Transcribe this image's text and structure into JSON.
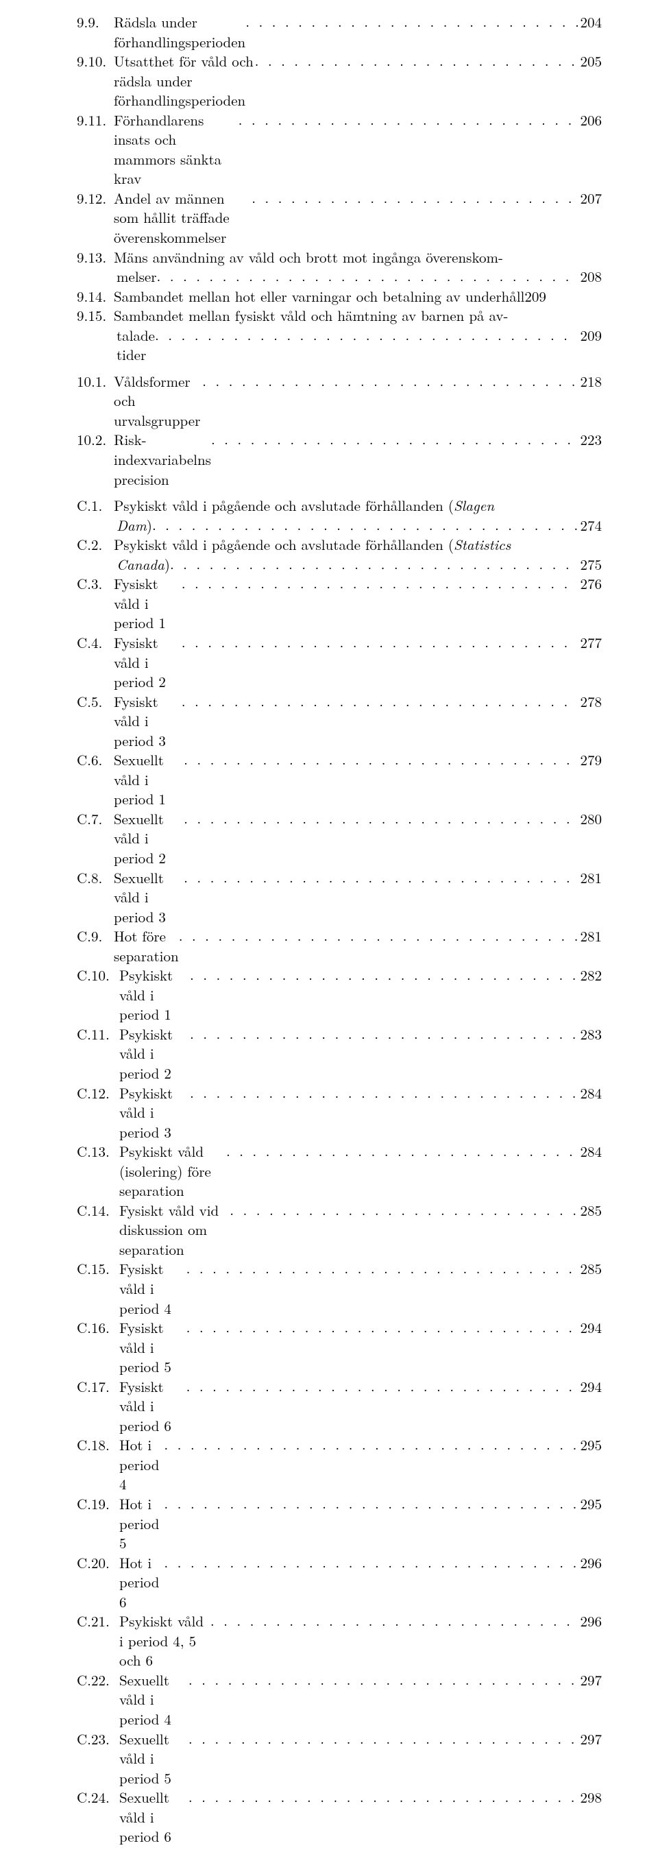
{
  "block9": [
    {
      "num": "9.9.",
      "title": "Rädsla under förhandlingsperioden",
      "pg": "204"
    },
    {
      "num": "9.10.",
      "title": "Utsatthet för våld och rädsla under förhandlingsperioden",
      "pg": "205"
    },
    {
      "num": "9.11.",
      "title": "Förhandlarens insats och mammors sänkta krav",
      "pg": "206"
    },
    {
      "num": "9.12.",
      "title": "Andel av männen som hållit träffade överenskommelser",
      "pg": "207"
    },
    {
      "num": "9.13.",
      "title_l1": "Mäns användning av våld och brott mot ingånga överenskom-",
      "title_l2": "melser",
      "pg": "208"
    },
    {
      "num": "9.14.",
      "title": "Sambandet mellan hot eller varningar och betalning av underhåll",
      "pg": "209",
      "noleader": true
    },
    {
      "num": "9.15.",
      "title_l1": "Sambandet mellan fysiskt våld och hämtning av barnen på av-",
      "title_l2": "talade tider",
      "pg": "209"
    }
  ],
  "block10": [
    {
      "num": "10.1.",
      "title": "Våldsformer och urvalsgrupper",
      "pg": "218"
    },
    {
      "num": "10.2.",
      "title": "Risk-indexvariabelns precision",
      "pg": "223"
    }
  ],
  "blockC": [
    {
      "num": "C.1.",
      "title_l1_pre": "Psykiskt våld i pågående och avslutade förhållanden (",
      "title_l1_it": "Slagen",
      "title_l2_it": "Dam",
      "title_l2_post": ")",
      "pg": "274"
    },
    {
      "num": "C.2.",
      "title_l1_pre": "Psykiskt våld i pågående och avslutade förhållanden (",
      "title_l1_it": "Statistics",
      "title_l2_it": "Canada",
      "title_l2_post": ")",
      "pg": "275"
    },
    {
      "num": "C.3.",
      "title": "Fysiskt våld i period 1",
      "pg": "276"
    },
    {
      "num": "C.4.",
      "title": "Fysiskt våld i period 2",
      "pg": "277"
    },
    {
      "num": "C.5.",
      "title": "Fysiskt våld i period 3",
      "pg": "278"
    },
    {
      "num": "C.6.",
      "title": "Sexuellt våld i period 1",
      "pg": "279"
    },
    {
      "num": "C.7.",
      "title": "Sexuellt våld i period 2",
      "pg": "280"
    },
    {
      "num": "C.8.",
      "title": "Sexuellt våld i period 3",
      "pg": "281"
    },
    {
      "num": "C.9.",
      "title": "Hot före separation",
      "pg": "281"
    },
    {
      "num": "C.10.",
      "title": "Psykiskt våld i period 1",
      "pg": "282"
    },
    {
      "num": "C.11.",
      "title": "Psykiskt våld i period 2",
      "pg": "283"
    },
    {
      "num": "C.12.",
      "title": "Psykiskt våld i period 3",
      "pg": "284"
    },
    {
      "num": "C.13.",
      "title": "Psykiskt våld (isolering) före separation",
      "pg": "284"
    },
    {
      "num": "C.14.",
      "title": "Fysiskt våld vid diskussion om separation",
      "pg": "285"
    },
    {
      "num": "C.15.",
      "title": "Fysiskt våld i period 4",
      "pg": "285"
    },
    {
      "num": "C.16.",
      "title": "Fysiskt våld i period 5",
      "pg": "294"
    },
    {
      "num": "C.17.",
      "title": "Fysiskt våld i period 6",
      "pg": "294"
    },
    {
      "num": "C.18.",
      "title": "Hot i period 4",
      "pg": "295"
    },
    {
      "num": "C.19.",
      "title": "Hot i period 5",
      "pg": "295"
    },
    {
      "num": "C.20.",
      "title": "Hot i period 6",
      "pg": "296"
    },
    {
      "num": "C.21.",
      "title": "Psykiskt våld i period 4, 5 och 6",
      "pg": "296"
    },
    {
      "num": "C.22.",
      "title": "Sexuellt våld i period 4",
      "pg": "297"
    },
    {
      "num": "C.23.",
      "title": "Sexuellt våld i period 5",
      "pg": "297"
    },
    {
      "num": "C.24.",
      "title": "Sexuellt våld i period 6",
      "pg": "298"
    }
  ]
}
